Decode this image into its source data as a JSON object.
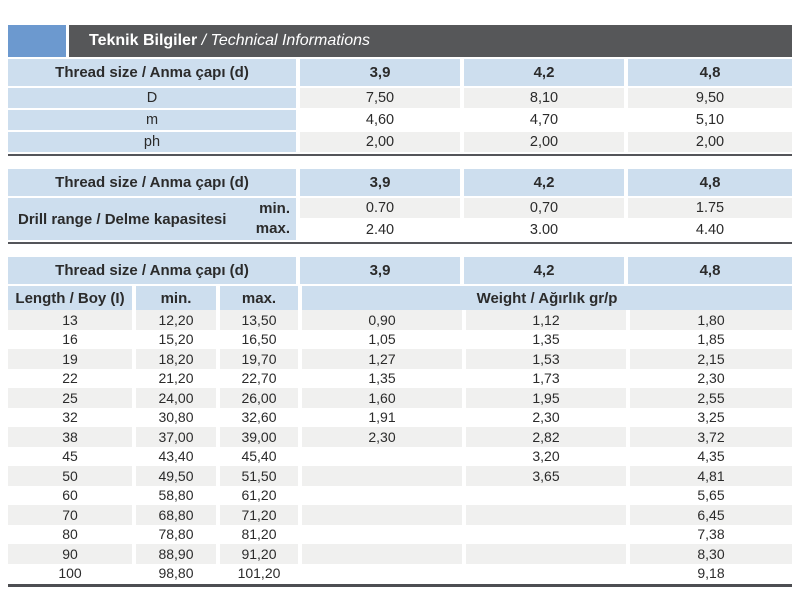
{
  "header": {
    "title_bold": "Teknik Bilgiler",
    "title_italic": " / Technical Informations"
  },
  "colors": {
    "accent_blue": "#6c99cf",
    "bar_gray": "#565759",
    "cell_blue": "#cddeee",
    "row_gray": "#f0f0ef",
    "separator": "#54555a",
    "text": "#2b2b2b"
  },
  "table1": {
    "header": [
      "Thread size / Anma çapı (d)",
      "3,9",
      "4,2",
      "4,8"
    ],
    "rows": [
      {
        "label": "D",
        "values": [
          "7,50",
          "8,10",
          "9,50"
        ]
      },
      {
        "label": "m",
        "values": [
          "4,60",
          "4,70",
          "5,10"
        ]
      },
      {
        "label": "ph",
        "values": [
          "2,00",
          "2,00",
          "2,00"
        ]
      }
    ]
  },
  "table2": {
    "header": [
      "Thread size / Anma çapı (d)",
      "3,9",
      "4,2",
      "4,8"
    ],
    "group_label": "Drill range / Delme kapasitesi",
    "rows": [
      {
        "label": "min.",
        "values": [
          "0.70",
          "0,70",
          "1.75"
        ]
      },
      {
        "label": "max.",
        "values": [
          "2.40",
          "3.00",
          "4.40"
        ]
      }
    ]
  },
  "table3": {
    "header1": [
      "Thread size / Anma çapı (d)",
      "3,9",
      "4,2",
      "4,8"
    ],
    "header2": [
      "Length / Boy (I)",
      "min.",
      "max.",
      "Weight / Ağırlık gr/p"
    ],
    "rows": [
      {
        "length": "13",
        "min": "12,20",
        "max": "13,50",
        "weights": [
          "0,90",
          "1,12",
          "1,80"
        ]
      },
      {
        "length": "16",
        "min": "15,20",
        "max": "16,50",
        "weights": [
          "1,05",
          "1,35",
          "1,85"
        ]
      },
      {
        "length": "19",
        "min": "18,20",
        "max": "19,70",
        "weights": [
          "1,27",
          "1,53",
          "2,15"
        ]
      },
      {
        "length": "22",
        "min": "21,20",
        "max": "22,70",
        "weights": [
          "1,35",
          "1,73",
          "2,30"
        ]
      },
      {
        "length": "25",
        "min": "24,00",
        "max": "26,00",
        "weights": [
          "1,60",
          "1,95",
          "2,55"
        ]
      },
      {
        "length": "32",
        "min": "30,80",
        "max": "32,60",
        "weights": [
          "1,91",
          "2,30",
          "3,25"
        ]
      },
      {
        "length": "38",
        "min": "37,00",
        "max": "39,00",
        "weights": [
          "2,30",
          "2,82",
          "3,72"
        ]
      },
      {
        "length": "45",
        "min": "43,40",
        "max": "45,40",
        "weights": [
          "",
          "3,20",
          "4,35"
        ]
      },
      {
        "length": "50",
        "min": "49,50",
        "max": "51,50",
        "weights": [
          "",
          "3,65",
          "4,81"
        ]
      },
      {
        "length": "60",
        "min": "58,80",
        "max": "61,20",
        "weights": [
          "",
          "",
          "5,65"
        ]
      },
      {
        "length": "70",
        "min": "68,80",
        "max": "71,20",
        "weights": [
          "",
          "",
          "6,45"
        ]
      },
      {
        "length": "80",
        "min": "78,80",
        "max": "81,20",
        "weights": [
          "",
          "",
          "7,38"
        ]
      },
      {
        "length": "90",
        "min": "88,90",
        "max": "91,20",
        "weights": [
          "",
          "",
          "8,30"
        ]
      },
      {
        "length": "100",
        "min": "98,80",
        "max": "101,20",
        "weights": [
          "",
          "",
          "9,18"
        ]
      }
    ]
  }
}
